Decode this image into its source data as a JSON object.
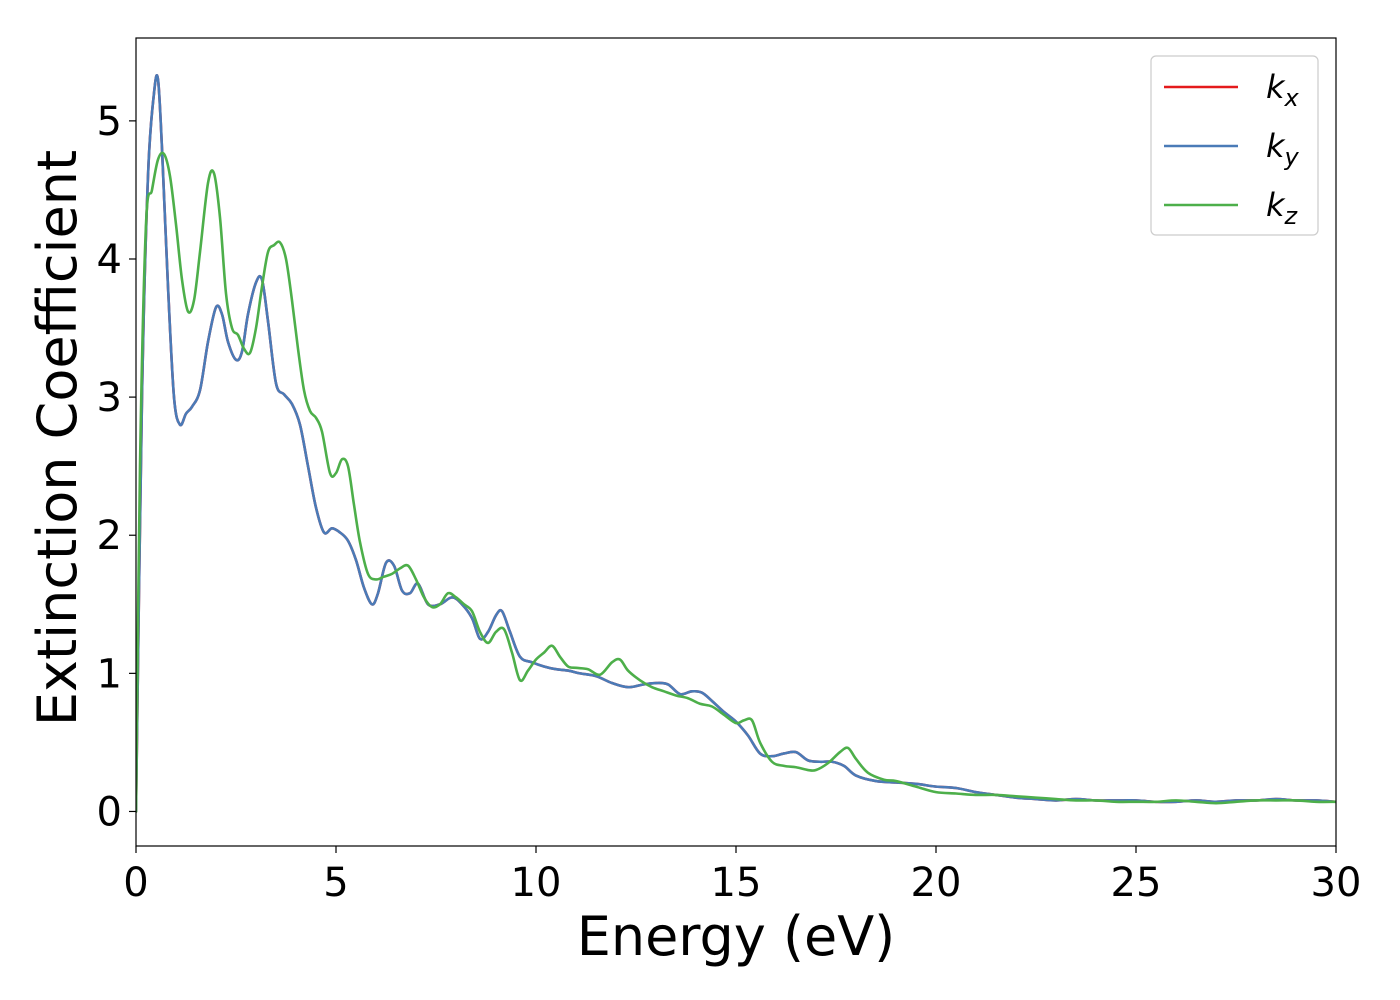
{
  "chart_data": {
    "type": "line",
    "xlabel": "Energy (eV)",
    "ylabel": "Extinction Coefficient",
    "xlim": [
      0,
      30
    ],
    "ylim": [
      -0.25,
      5.6
    ],
    "xticks": [
      0,
      5,
      10,
      15,
      20,
      25,
      30
    ],
    "yticks": [
      0,
      1,
      2,
      3,
      4,
      5
    ],
    "grid": false,
    "legend_position": "top-right",
    "series": [
      {
        "name": "k_x",
        "label_base": "k",
        "label_sub": "x",
        "color": "#e41a1c",
        "x": [
          0,
          0.15,
          0.3,
          0.45,
          0.55,
          0.65,
          0.8,
          0.95,
          1.1,
          1.25,
          1.4,
          1.6,
          1.8,
          2.0,
          2.15,
          2.3,
          2.5,
          2.65,
          2.8,
          3.0,
          3.15,
          3.3,
          3.5,
          3.7,
          3.9,
          4.1,
          4.3,
          4.5,
          4.7,
          4.9,
          5.1,
          5.3,
          5.5,
          5.7,
          5.9,
          6.05,
          6.25,
          6.45,
          6.65,
          6.85,
          7.05,
          7.3,
          7.6,
          7.9,
          8.15,
          8.4,
          8.6,
          8.8,
          9.0,
          9.15,
          9.35,
          9.6,
          9.9,
          10.2,
          10.5,
          10.8,
          11.1,
          11.5,
          11.9,
          12.3,
          12.7,
          13.0,
          13.3,
          13.6,
          13.9,
          14.15,
          14.4,
          14.7,
          15.0,
          15.3,
          15.6,
          15.9,
          16.2,
          16.5,
          16.8,
          17.1,
          17.4,
          17.7,
          18.0,
          18.5,
          19.0,
          19.5,
          20.0,
          20.5,
          21.0,
          21.5,
          22.0,
          22.5,
          23.0,
          23.5,
          24.0,
          24.5,
          25.0,
          25.5,
          26.0,
          26.5,
          27.0,
          27.5,
          28.0,
          28.5,
          29.0,
          29.5,
          30.0
        ],
        "values": [
          0.0,
          3.0,
          4.6,
          5.2,
          5.3,
          4.8,
          3.8,
          3.0,
          2.8,
          2.88,
          2.93,
          3.05,
          3.4,
          3.65,
          3.6,
          3.4,
          3.27,
          3.33,
          3.6,
          3.83,
          3.85,
          3.55,
          3.1,
          3.02,
          2.95,
          2.8,
          2.5,
          2.2,
          2.02,
          2.05,
          2.02,
          1.96,
          1.82,
          1.62,
          1.5,
          1.58,
          1.8,
          1.78,
          1.6,
          1.58,
          1.65,
          1.5,
          1.5,
          1.55,
          1.5,
          1.4,
          1.25,
          1.3,
          1.42,
          1.45,
          1.3,
          1.12,
          1.08,
          1.05,
          1.03,
          1.02,
          1.0,
          0.98,
          0.93,
          0.9,
          0.92,
          0.93,
          0.92,
          0.85,
          0.87,
          0.86,
          0.8,
          0.72,
          0.65,
          0.55,
          0.42,
          0.4,
          0.42,
          0.43,
          0.37,
          0.36,
          0.36,
          0.33,
          0.26,
          0.22,
          0.21,
          0.2,
          0.18,
          0.17,
          0.14,
          0.12,
          0.1,
          0.09,
          0.08,
          0.09,
          0.08,
          0.08,
          0.08,
          0.07,
          0.07,
          0.08,
          0.07,
          0.08,
          0.08,
          0.09,
          0.08,
          0.08,
          0.07
        ]
      },
      {
        "name": "k_y",
        "label_base": "k",
        "label_sub": "y",
        "color": "#4a7bb7",
        "x": [
          0,
          0.15,
          0.3,
          0.45,
          0.55,
          0.65,
          0.8,
          0.95,
          1.1,
          1.25,
          1.4,
          1.6,
          1.8,
          2.0,
          2.15,
          2.3,
          2.5,
          2.65,
          2.8,
          3.0,
          3.15,
          3.3,
          3.5,
          3.7,
          3.9,
          4.1,
          4.3,
          4.5,
          4.7,
          4.9,
          5.1,
          5.3,
          5.5,
          5.7,
          5.9,
          6.05,
          6.25,
          6.45,
          6.65,
          6.85,
          7.05,
          7.3,
          7.6,
          7.9,
          8.15,
          8.4,
          8.6,
          8.8,
          9.0,
          9.15,
          9.35,
          9.6,
          9.9,
          10.2,
          10.5,
          10.8,
          11.1,
          11.5,
          11.9,
          12.3,
          12.7,
          13.0,
          13.3,
          13.6,
          13.9,
          14.15,
          14.4,
          14.7,
          15.0,
          15.3,
          15.6,
          15.9,
          16.2,
          16.5,
          16.8,
          17.1,
          17.4,
          17.7,
          18.0,
          18.5,
          19.0,
          19.5,
          20.0,
          20.5,
          21.0,
          21.5,
          22.0,
          22.5,
          23.0,
          23.5,
          24.0,
          24.5,
          25.0,
          25.5,
          26.0,
          26.5,
          27.0,
          27.5,
          28.0,
          28.5,
          29.0,
          29.5,
          30.0
        ],
        "values": [
          0.0,
          3.0,
          4.6,
          5.2,
          5.3,
          4.8,
          3.8,
          3.0,
          2.8,
          2.88,
          2.93,
          3.05,
          3.4,
          3.65,
          3.6,
          3.4,
          3.27,
          3.33,
          3.6,
          3.83,
          3.85,
          3.55,
          3.1,
          3.02,
          2.95,
          2.8,
          2.5,
          2.2,
          2.02,
          2.05,
          2.02,
          1.96,
          1.82,
          1.62,
          1.5,
          1.58,
          1.8,
          1.78,
          1.6,
          1.58,
          1.65,
          1.5,
          1.5,
          1.55,
          1.5,
          1.4,
          1.25,
          1.3,
          1.42,
          1.45,
          1.3,
          1.12,
          1.08,
          1.05,
          1.03,
          1.02,
          1.0,
          0.98,
          0.93,
          0.9,
          0.92,
          0.93,
          0.92,
          0.85,
          0.87,
          0.86,
          0.8,
          0.72,
          0.65,
          0.55,
          0.42,
          0.4,
          0.42,
          0.43,
          0.37,
          0.36,
          0.36,
          0.33,
          0.26,
          0.22,
          0.21,
          0.2,
          0.18,
          0.17,
          0.14,
          0.12,
          0.1,
          0.09,
          0.08,
          0.09,
          0.08,
          0.08,
          0.08,
          0.07,
          0.07,
          0.08,
          0.07,
          0.08,
          0.08,
          0.09,
          0.08,
          0.08,
          0.07
        ]
      },
      {
        "name": "k_z",
        "label_base": "k",
        "label_sub": "z",
        "color": "#4daf4a",
        "x": [
          0,
          0.1,
          0.25,
          0.4,
          0.55,
          0.7,
          0.85,
          1.0,
          1.15,
          1.3,
          1.45,
          1.6,
          1.8,
          1.95,
          2.1,
          2.25,
          2.4,
          2.55,
          2.7,
          2.85,
          3.0,
          3.15,
          3.3,
          3.45,
          3.6,
          3.75,
          3.9,
          4.05,
          4.2,
          4.35,
          4.5,
          4.65,
          4.85,
          5.0,
          5.15,
          5.3,
          5.45,
          5.6,
          5.8,
          6.0,
          6.2,
          6.4,
          6.6,
          6.8,
          7.0,
          7.2,
          7.4,
          7.6,
          7.8,
          8.0,
          8.2,
          8.4,
          8.6,
          8.8,
          9.0,
          9.2,
          9.4,
          9.6,
          9.8,
          10.0,
          10.2,
          10.4,
          10.6,
          10.8,
          11.0,
          11.3,
          11.6,
          11.9,
          12.1,
          12.3,
          12.6,
          12.9,
          13.2,
          13.5,
          13.8,
          14.1,
          14.4,
          14.7,
          15.0,
          15.2,
          15.4,
          15.6,
          15.9,
          16.2,
          16.5,
          16.8,
          17.0,
          17.3,
          17.6,
          17.8,
          18.0,
          18.3,
          18.7,
          19.0,
          19.5,
          20.0,
          20.5,
          21.0,
          21.5,
          22.0,
          22.5,
          23.0,
          23.5,
          24.0,
          24.5,
          25.0,
          25.5,
          26.0,
          26.5,
          27.0,
          27.5,
          28.0,
          28.5,
          29.0,
          29.5,
          30.0
        ],
        "values": [
          0.0,
          2.5,
          4.25,
          4.5,
          4.72,
          4.76,
          4.6,
          4.25,
          3.85,
          3.62,
          3.7,
          4.05,
          4.55,
          4.62,
          4.3,
          3.75,
          3.5,
          3.45,
          3.35,
          3.32,
          3.5,
          3.8,
          4.05,
          4.1,
          4.12,
          4.0,
          3.7,
          3.35,
          3.05,
          2.9,
          2.85,
          2.75,
          2.45,
          2.45,
          2.55,
          2.5,
          2.22,
          1.95,
          1.72,
          1.68,
          1.7,
          1.72,
          1.76,
          1.78,
          1.68,
          1.55,
          1.48,
          1.5,
          1.58,
          1.55,
          1.5,
          1.45,
          1.3,
          1.22,
          1.3,
          1.32,
          1.15,
          0.95,
          1.02,
          1.1,
          1.15,
          1.2,
          1.12,
          1.05,
          1.04,
          1.03,
          0.99,
          1.08,
          1.1,
          1.02,
          0.95,
          0.9,
          0.87,
          0.84,
          0.82,
          0.78,
          0.76,
          0.7,
          0.64,
          0.66,
          0.66,
          0.5,
          0.36,
          0.33,
          0.32,
          0.3,
          0.3,
          0.35,
          0.43,
          0.46,
          0.38,
          0.28,
          0.23,
          0.22,
          0.18,
          0.14,
          0.13,
          0.12,
          0.12,
          0.11,
          0.1,
          0.09,
          0.08,
          0.08,
          0.07,
          0.07,
          0.07,
          0.08,
          0.07,
          0.06,
          0.07,
          0.08,
          0.08,
          0.08,
          0.07,
          0.07
        ]
      }
    ]
  }
}
